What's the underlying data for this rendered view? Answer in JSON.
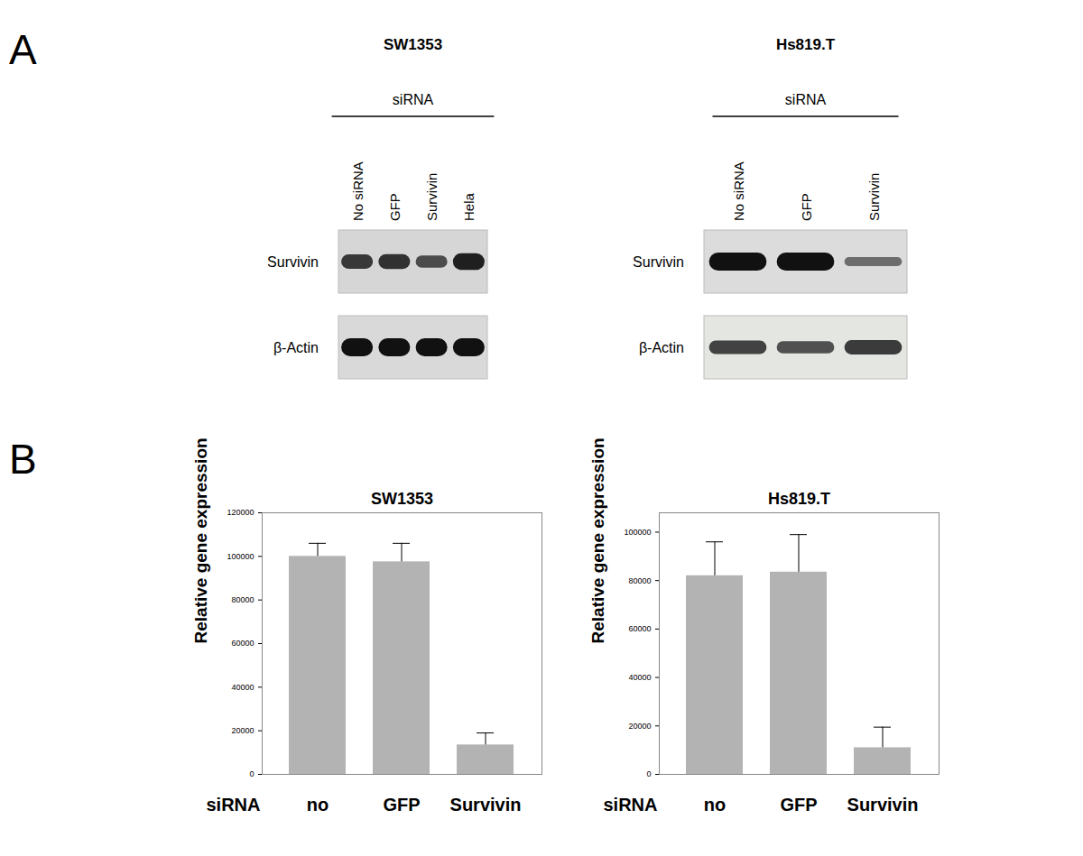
{
  "panels": [
    "A",
    "B"
  ],
  "blots": [
    {
      "title": "SW1353",
      "header": "siRNA",
      "lanes": [
        "No siRNA",
        "GFP",
        "Survivin",
        "Hela"
      ],
      "rows": [
        {
          "label": "Survivin",
          "band_intensity": [
            0.7,
            0.75,
            0.55,
            0.9
          ]
        },
        {
          "label": "β-Actin",
          "band_intensity": [
            1,
            1,
            1,
            1
          ]
        }
      ]
    },
    {
      "title": "Hs819.T",
      "header": "siRNA",
      "lanes": [
        "No siRNA",
        "GFP",
        "Survivin"
      ],
      "rows": [
        {
          "label": "Survivin",
          "band_intensity": [
            1,
            1,
            0.3
          ]
        },
        {
          "label": "β-Actin",
          "band_intensity": [
            0.65,
            0.55,
            0.7
          ]
        }
      ]
    }
  ],
  "chart_data": [
    {
      "type": "bar",
      "title": "SW1353",
      "xlabel": "siRNA",
      "ylabel": "Relative gene expression",
      "categories": [
        "no",
        "GFP",
        "Survivin"
      ],
      "values": [
        100000,
        97500,
        13500
      ],
      "errors": [
        6000,
        8500,
        5500
      ],
      "color": "#b3b3b3",
      "ylim": [
        0,
        120000
      ],
      "yticks": [
        0,
        20000,
        40000,
        60000,
        80000,
        100000,
        120000
      ]
    },
    {
      "type": "bar",
      "title": "Hs819.T",
      "xlabel": "siRNA",
      "ylabel": "Relative gene expression",
      "categories": [
        "no",
        "GFP",
        "Survivin"
      ],
      "values": [
        82000,
        83500,
        11000
      ],
      "errors": [
        14000,
        15500,
        8500
      ],
      "color": "#b3b3b3",
      "ylim": [
        0,
        108000
      ],
      "yticks": [
        0,
        20000,
        40000,
        60000,
        80000,
        100000
      ]
    }
  ]
}
